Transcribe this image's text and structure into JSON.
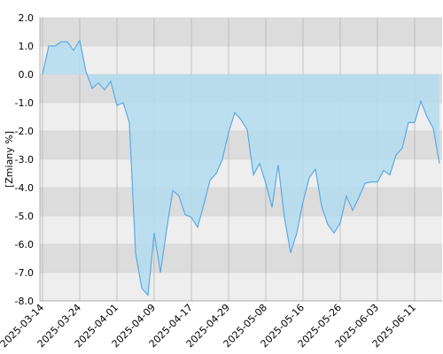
{
  "chart_data": {
    "type": "area",
    "y_label": "[Zmiany %]",
    "categories": [
      "2025-03-14",
      null,
      null,
      null,
      null,
      null,
      "2025-03-24",
      null,
      null,
      null,
      null,
      null,
      "2025-04-01",
      null,
      null,
      null,
      null,
      null,
      "2025-04-09",
      null,
      null,
      null,
      null,
      null,
      "2025-04-17",
      null,
      null,
      null,
      null,
      null,
      "2025-04-29",
      null,
      null,
      null,
      null,
      null,
      "2025-05-08",
      null,
      null,
      null,
      null,
      null,
      "2025-05-16",
      null,
      null,
      null,
      null,
      null,
      "2025-05-26",
      null,
      null,
      null,
      null,
      null,
      "2025-06-03",
      null,
      null,
      null,
      null,
      null,
      "2025-06-11",
      null,
      null,
      null,
      null
    ],
    "values": [
      0,
      1.0,
      1.0,
      1.15,
      1.15,
      0.85,
      1.2,
      0.1,
      -0.5,
      -0.3,
      -0.55,
      -0.25,
      -1.1,
      -1.0,
      -1.7,
      -6.3,
      -7.55,
      -7.8,
      -5.6,
      -7.0,
      -5.5,
      -4.1,
      -4.3,
      -4.95,
      -5.05,
      -5.4,
      -4.6,
      -3.75,
      -3.5,
      -3.0,
      -2.05,
      -1.35,
      -1.6,
      -1.95,
      -3.55,
      -3.15,
      -3.85,
      -4.7,
      -3.2,
      -5.05,
      -6.3,
      -5.6,
      -4.5,
      -3.65,
      -3.35,
      -4.65,
      -5.3,
      -5.6,
      -5.25,
      -4.3,
      -4.8,
      -4.35,
      -3.85,
      -3.8,
      -3.8,
      -3.4,
      -3.55,
      -2.85,
      -2.6,
      -1.7,
      -1.7,
      -0.95,
      -1.5,
      -1.9,
      -3.15
    ],
    "color": "#5aaae6",
    "fill": "#b3dcf0",
    "ylim": [
      -8,
      2
    ],
    "yticks": [
      {
        "value": 2,
        "label": "2.0"
      },
      {
        "value": 1,
        "label": "1.0"
      },
      {
        "value": 0,
        "label": "0.0"
      },
      {
        "value": -1,
        "label": "-1.0"
      },
      {
        "value": -2,
        "label": "-2.0"
      },
      {
        "value": -3,
        "label": "-3.0"
      },
      {
        "value": -4,
        "label": "-4.0"
      },
      {
        "value": -5,
        "label": "-5.0"
      },
      {
        "value": -6,
        "label": "-6.0"
      },
      {
        "value": -7,
        "label": "-7.0"
      },
      {
        "value": -8,
        "label": "-8.0"
      }
    ],
    "grid": true
  }
}
